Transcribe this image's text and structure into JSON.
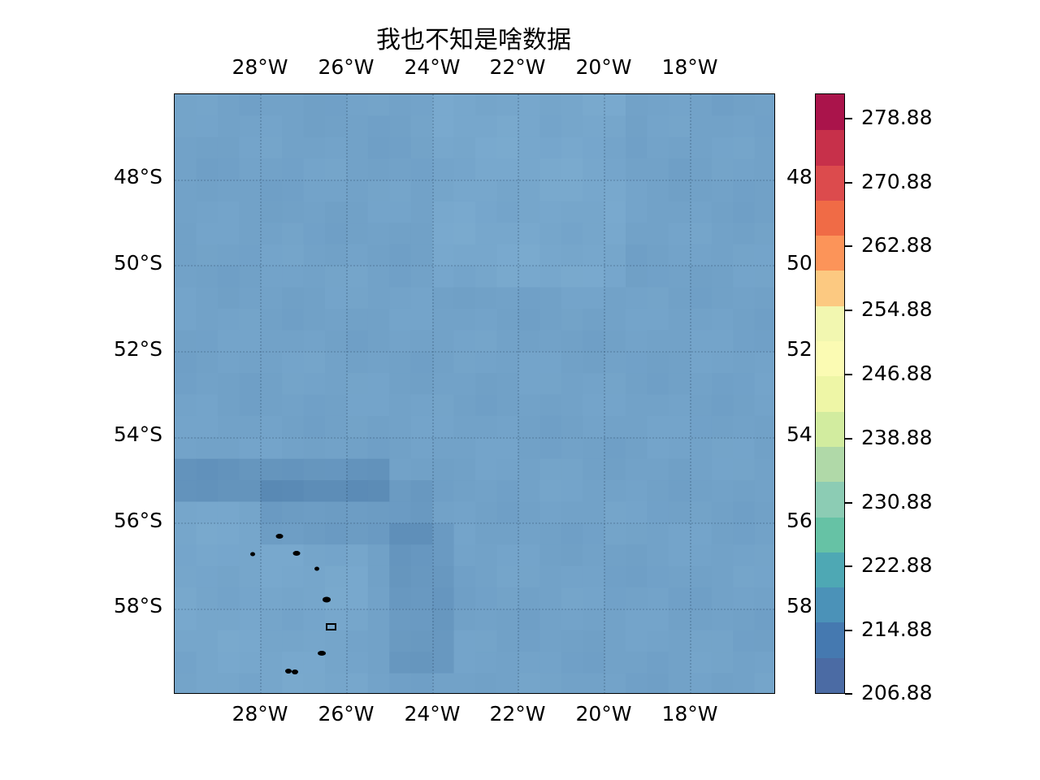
{
  "title": "我也不知是啥数据",
  "lon_labels": [
    "28°W",
    "26°W",
    "24°W",
    "22°W",
    "20°W",
    "18°W"
  ],
  "lat_labels": [
    "48°S",
    "50°S",
    "52°S",
    "54°S",
    "56°S",
    "58°S"
  ],
  "colorbar": {
    "tick_labels": [
      "278.88",
      "270.88",
      "262.88",
      "254.88",
      "246.88",
      "238.88",
      "230.88",
      "222.88",
      "214.88",
      "206.88"
    ],
    "colormap_colors": [
      "#4b6ba4",
      "#4579b0",
      "#4b92b8",
      "#4ea8b4",
      "#66c2a5",
      "#8cccb4",
      "#b0d9a8",
      "#d2ec9f",
      "#eef6a6",
      "#fbfbb3",
      "#f2f7b0",
      "#fcc981",
      "#fc9459",
      "#f06b46",
      "#dc4b4d",
      "#c7304a",
      "#aa144b"
    ]
  },
  "map": {
    "fill_color_main": "#72a2c8",
    "fill_color_light": "#7aaed3",
    "fill_color_dark": "#5f8fb4",
    "coastline_color": "#000000"
  }
}
